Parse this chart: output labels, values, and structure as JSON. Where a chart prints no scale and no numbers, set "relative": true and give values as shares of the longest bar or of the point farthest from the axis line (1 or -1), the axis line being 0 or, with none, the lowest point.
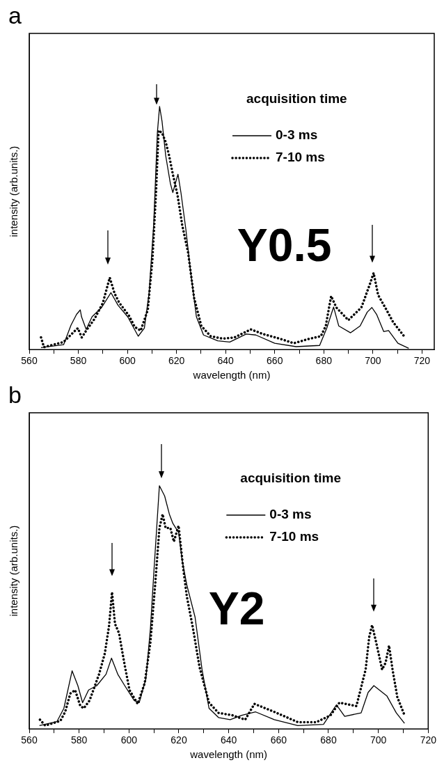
{
  "chart_data": [
    {
      "type": "line",
      "title": "a",
      "xlabel": "wavelength (nm)",
      "ylabel": "intensity (arb.units.)",
      "relative": true,
      "legend": "top right",
      "legend_title": "acquisition time",
      "annotations": [
        "Y0.5"
      ],
      "grid": false,
      "marker": "none",
      "xlim": [
        560,
        725
      ],
      "xticks": [
        560,
        {
          "value": 570,
          "label": null
        },
        580,
        {
          "value": 590,
          "label": null
        },
        600,
        {
          "value": 610,
          "label": null
        },
        620,
        {
          "value": 630,
          "label": null
        },
        640,
        {
          "value": 650,
          "label": null
        },
        660,
        {
          "value": 670,
          "label": null
        },
        680,
        {
          "value": 690,
          "label": null
        },
        700,
        {
          "value": 710,
          "label": null
        },
        720
      ],
      "series": [
        {
          "name": "0-3 ms",
          "color": "#000000",
          "line_style": "solid",
          "x": [
            564.8,
            574,
            577,
            579.3,
            580.8,
            581.3,
            583.2,
            585.6,
            589.5,
            593.3,
            596.2,
            600.1,
            604.4,
            606.9,
            608.8,
            610.7,
            612.2,
            613.1,
            614.1,
            615.6,
            617.5,
            618.5,
            620.6,
            621.8,
            623.8,
            625.7,
            628.1,
            631,
            636.8,
            641.7,
            648.4,
            652.3,
            660,
            668.7,
            678.3,
            681.2,
            684,
            686.1,
            690.9,
            694.8,
            697.7,
            699.6,
            701.5,
            704.4,
            706.4,
            710.2,
            714.6
          ],
          "values": [
            0.008,
            0.02,
            0.1,
            0.145,
            0.163,
            0.135,
            0.083,
            0.135,
            0.173,
            0.234,
            0.182,
            0.135,
            0.055,
            0.088,
            0.23,
            0.513,
            0.891,
            1.0,
            0.939,
            0.797,
            0.683,
            0.646,
            0.721,
            0.646,
            0.495,
            0.324,
            0.135,
            0.06,
            0.036,
            0.031,
            0.064,
            0.06,
            0.026,
            0.012,
            0.017,
            0.088,
            0.175,
            0.097,
            0.069,
            0.097,
            0.154,
            0.173,
            0.145,
            0.074,
            0.078,
            0.026,
            0.005
          ]
        },
        {
          "name": "7-10 ms",
          "color": "#000000",
          "line_style": "dotted",
          "x": [
            564.8,
            566,
            574,
            578.3,
            579.8,
            581.4,
            583.2,
            586.6,
            590,
            592.8,
            594.8,
            596.7,
            600.6,
            603,
            605.4,
            608.3,
            610.2,
            611.7,
            612.7,
            614.1,
            615.6,
            617,
            618.5,
            620.4,
            622.3,
            624.7,
            627.2,
            630.1,
            633.9,
            638.7,
            643.6,
            650.3,
            655.2,
            662,
            667.8,
            673.6,
            678.8,
            680.8,
            683,
            685.1,
            690,
            695.3,
            698.7,
            700.3,
            702.1,
            705.5,
            708.3,
            712.7
          ],
          "values": [
            0.05,
            0.01,
            0.031,
            0.074,
            0.088,
            0.05,
            0.078,
            0.126,
            0.192,
            0.296,
            0.23,
            0.192,
            0.14,
            0.093,
            0.078,
            0.163,
            0.371,
            0.655,
            0.901,
            0.891,
            0.853,
            0.797,
            0.721,
            0.636,
            0.513,
            0.4,
            0.211,
            0.097,
            0.055,
            0.045,
            0.05,
            0.083,
            0.064,
            0.045,
            0.026,
            0.043,
            0.055,
            0.097,
            0.22,
            0.173,
            0.121,
            0.173,
            0.267,
            0.315,
            0.225,
            0.164,
            0.112,
            0.055
          ]
        }
      ]
    },
    {
      "type": "line",
      "title": "b",
      "xlabel": "wavelength (nm)",
      "ylabel": "intensity (arb.units.)",
      "relative": true,
      "legend": "top right",
      "legend_title": "acquisition time",
      "annotations": [
        "Y2"
      ],
      "grid": false,
      "marker": "none",
      "xlim": [
        560,
        720
      ],
      "xticks": [
        560,
        {
          "value": 570,
          "label": null
        },
        580,
        {
          "value": 590,
          "label": null
        },
        600,
        {
          "value": 610,
          "label": null
        },
        620,
        {
          "value": 630,
          "label": null
        },
        640,
        {
          "value": 650,
          "label": null
        },
        660,
        {
          "value": 670,
          "label": null
        },
        680,
        {
          "value": 690,
          "label": null
        },
        700,
        {
          "value": 710,
          "label": null
        },
        720
      ],
      "series": [
        {
          "name": "0-3 ms",
          "color": "#000000",
          "line_style": "solid",
          "x": [
            564.1,
            571.1,
            573.9,
            577.2,
            579.5,
            581.4,
            583.8,
            587.1,
            590.8,
            593,
            595.5,
            598.3,
            602.1,
            604.1,
            606.8,
            608.6,
            610,
            612.2,
            614.3,
            616.2,
            617.6,
            619.9,
            621.3,
            623.2,
            626.5,
            629.3,
            632.1,
            635.9,
            640.6,
            645.2,
            650.8,
            658.3,
            667.7,
            678,
            683.2,
            686.5,
            693.1,
            695.9,
            698.2,
            703.4,
            707.2,
            710.5
          ],
          "values": [
            0.014,
            0.03,
            0.085,
            0.239,
            0.178,
            0.108,
            0.16,
            0.178,
            0.225,
            0.291,
            0.225,
            0.178,
            0.117,
            0.108,
            0.207,
            0.413,
            0.648,
            1.0,
            0.958,
            0.883,
            0.845,
            0.808,
            0.695,
            0.592,
            0.46,
            0.244,
            0.085,
            0.047,
            0.038,
            0.056,
            0.07,
            0.038,
            0.014,
            0.019,
            0.099,
            0.052,
            0.066,
            0.15,
            0.178,
            0.136,
            0.066,
            0.023
          ]
        },
        {
          "name": "7-10 ms",
          "color": "#000000",
          "line_style": "dotted",
          "x": [
            564.3,
            566.4,
            572.5,
            574.4,
            576.5,
            578.4,
            580.5,
            581.9,
            584.2,
            588,
            590.3,
            592,
            593.2,
            594.4,
            596,
            598.1,
            600.2,
            603.5,
            606.3,
            608.6,
            610.5,
            612.2,
            613.5,
            614.7,
            616.6,
            618,
            619.9,
            621.8,
            623.2,
            625.5,
            628.3,
            632.1,
            635.9,
            641.5,
            646.6,
            650.3,
            658.3,
            667.7,
            675.2,
            680.8,
            684.4,
            691.2,
            694.9,
            696.3,
            697.5,
            699.1,
            701.5,
            702.9,
            704.3,
            705.7,
            707.6,
            710.5
          ],
          "values": [
            0.038,
            0.014,
            0.033,
            0.07,
            0.146,
            0.16,
            0.094,
            0.085,
            0.117,
            0.225,
            0.31,
            0.423,
            0.563,
            0.432,
            0.394,
            0.272,
            0.16,
            0.103,
            0.188,
            0.357,
            0.592,
            0.826,
            0.883,
            0.826,
            0.826,
            0.77,
            0.836,
            0.657,
            0.545,
            0.423,
            0.254,
            0.108,
            0.066,
            0.056,
            0.038,
            0.103,
            0.07,
            0.028,
            0.028,
            0.056,
            0.108,
            0.094,
            0.244,
            0.376,
            0.427,
            0.357,
            0.244,
            0.272,
            0.343,
            0.244,
            0.131,
            0.056
          ]
        }
      ]
    }
  ]
}
